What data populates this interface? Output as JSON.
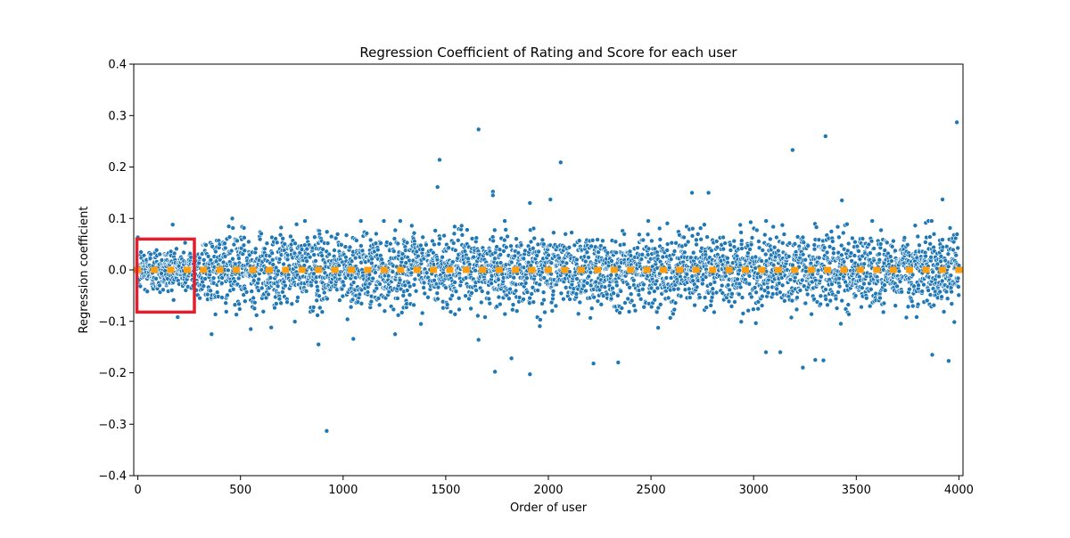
{
  "chart_data": {
    "type": "scatter",
    "title": "Regression Coefficient of Rating and Score for each user",
    "xlabel": "Order of user",
    "ylabel": "Regression coefficient",
    "xlim": [
      -20,
      4020
    ],
    "ylim": [
      -0.4,
      0.4
    ],
    "xticks": [
      0,
      500,
      1000,
      1500,
      2000,
      2500,
      3000,
      3500,
      4000
    ],
    "yticks": [
      -0.4,
      -0.3,
      -0.2,
      -0.1,
      0.0,
      0.1,
      0.2,
      0.3,
      0.4
    ],
    "xtick_labels": [
      "0",
      "500",
      "1000",
      "1500",
      "2000",
      "2500",
      "3000",
      "3500",
      "4000"
    ],
    "ytick_labels": [
      "−0.4",
      "−0.3",
      "−0.2",
      "−0.1",
      "0.0",
      "0.1",
      "0.2",
      "0.3",
      "0.4"
    ],
    "grid": false,
    "series": [
      {
        "kind": "scatter",
        "color": "#1f77b4",
        "approx_count": 4000,
        "bulk_spread_std": 0.035,
        "x_range": [
          0,
          4000
        ],
        "notable_points": [
          {
            "x": 920,
            "y": -0.313
          },
          {
            "x": 1660,
            "y": 0.273
          },
          {
            "x": 1470,
            "y": 0.214
          },
          {
            "x": 1460,
            "y": 0.161
          },
          {
            "x": 2060,
            "y": 0.209
          },
          {
            "x": 3190,
            "y": 0.233
          },
          {
            "x": 3350,
            "y": 0.26
          },
          {
            "x": 3990,
            "y": 0.287
          },
          {
            "x": 1730,
            "y": 0.152
          },
          {
            "x": 1730,
            "y": 0.145
          },
          {
            "x": 2700,
            "y": 0.15
          },
          {
            "x": 2780,
            "y": 0.15
          },
          {
            "x": 3430,
            "y": 0.135
          },
          {
            "x": 3920,
            "y": 0.137
          },
          {
            "x": 2010,
            "y": 0.137
          },
          {
            "x": 1910,
            "y": 0.13
          },
          {
            "x": 170,
            "y": 0.088
          },
          {
            "x": 460,
            "y": 0.1
          },
          {
            "x": 1740,
            "y": -0.198
          },
          {
            "x": 1910,
            "y": -0.203
          },
          {
            "x": 2220,
            "y": -0.182
          },
          {
            "x": 2340,
            "y": -0.18
          },
          {
            "x": 1820,
            "y": -0.172
          },
          {
            "x": 3240,
            "y": -0.19
          },
          {
            "x": 3300,
            "y": -0.175
          },
          {
            "x": 3340,
            "y": -0.176
          },
          {
            "x": 3950,
            "y": -0.177
          },
          {
            "x": 3060,
            "y": -0.16
          },
          {
            "x": 3130,
            "y": -0.16
          },
          {
            "x": 3870,
            "y": -0.165
          },
          {
            "x": 880,
            "y": -0.145
          },
          {
            "x": 1050,
            "y": -0.134
          },
          {
            "x": 1660,
            "y": -0.136
          },
          {
            "x": 550,
            "y": -0.115
          },
          {
            "x": 650,
            "y": -0.112
          }
        ]
      },
      {
        "kind": "trend-markers",
        "color": "#ff9f0f",
        "y": 0.0,
        "x_start": 0,
        "x_end": 4000,
        "spacing": 80
      }
    ],
    "annotations": [
      {
        "kind": "highlight-box",
        "color": "#e0202e",
        "x_range": [
          -5,
          275
        ],
        "y_range": [
          -0.082,
          0.06
        ]
      }
    ]
  }
}
